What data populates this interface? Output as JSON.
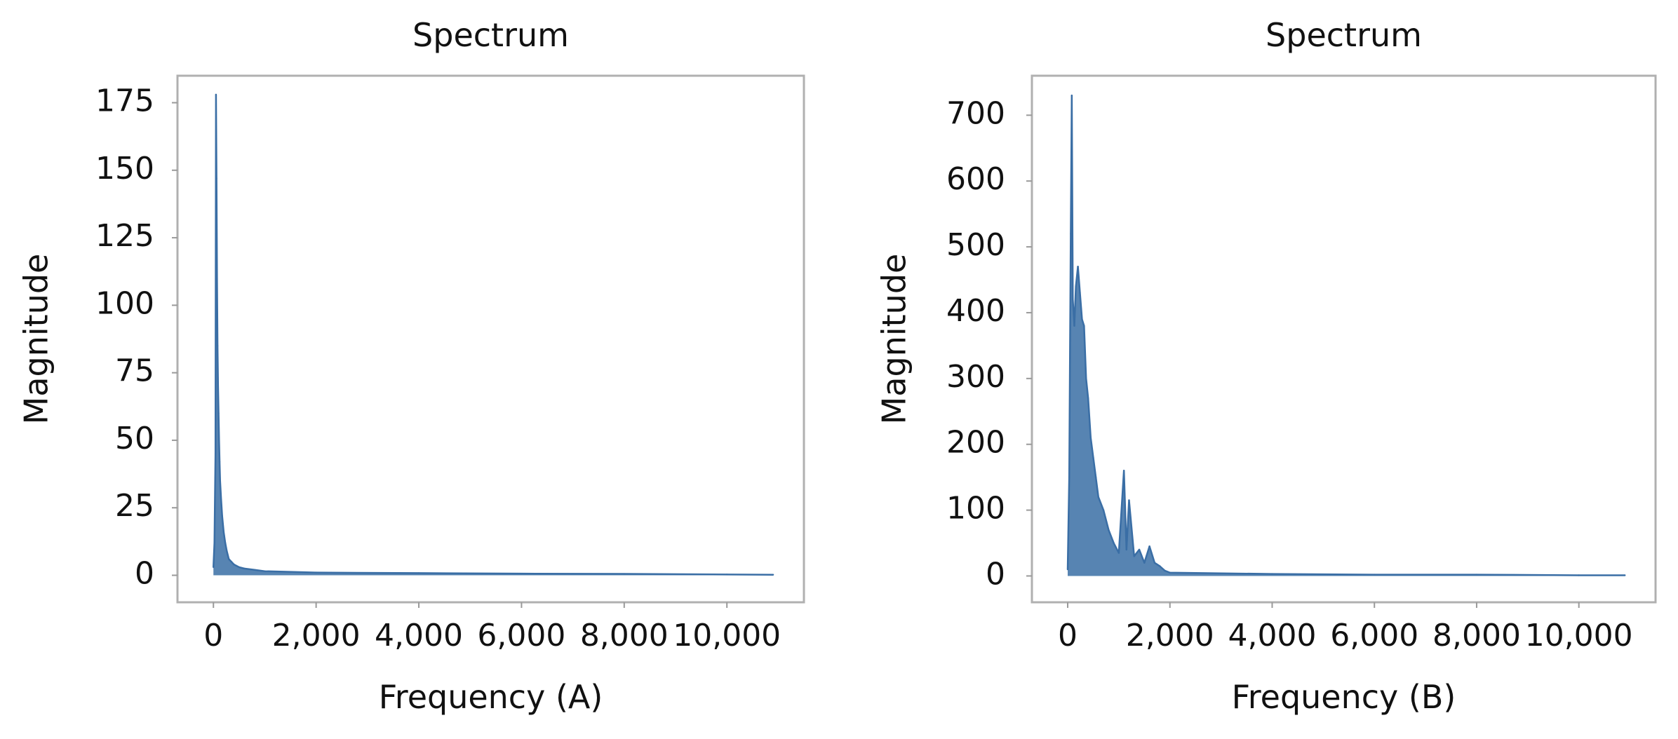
{
  "chart_data": [
    {
      "type": "line",
      "title": "Spectrum",
      "xlabel": "Frequency (A)",
      "ylabel": "Magnitude",
      "xlim": [
        -700,
        11500
      ],
      "ylim": [
        -10,
        185
      ],
      "xticks": [
        0,
        2000,
        4000,
        6000,
        8000,
        10000
      ],
      "xtick_labels": [
        "0",
        "2,000",
        "4,000",
        "6,000",
        "8,000",
        "10,000"
      ],
      "yticks": [
        0,
        25,
        50,
        75,
        100,
        125,
        150,
        175
      ],
      "ytick_labels": [
        "0",
        "25",
        "50",
        "75",
        "100",
        "125",
        "150",
        "175"
      ],
      "grid": false,
      "line_color": "#3a6ea5",
      "series": [
        {
          "x": [
            0,
            20,
            40,
            50,
            60,
            70,
            80,
            90,
            100,
            110,
            120,
            130,
            150,
            170,
            200,
            230,
            260,
            300,
            350,
            400,
            500,
            600,
            800,
            1000,
            2000,
            4000,
            6000,
            8000,
            10000,
            10900
          ],
          "y": [
            3,
            12,
            45,
            178,
            147,
            110,
            85,
            70,
            60,
            50,
            42,
            35,
            28,
            22,
            16,
            12,
            9,
            6,
            5,
            4,
            3,
            2.5,
            2,
            1.5,
            1,
            0.8,
            0.6,
            0.5,
            0.3,
            0.2
          ]
        }
      ]
    },
    {
      "type": "line",
      "title": "Spectrum",
      "xlabel": "Frequency (B)",
      "ylabel": "Magnitude",
      "xlim": [
        -700,
        11500
      ],
      "ylim": [
        -40,
        760
      ],
      "xticks": [
        0,
        2000,
        4000,
        6000,
        8000,
        10000
      ],
      "xtick_labels": [
        "0",
        "2,000",
        "4,000",
        "6,000",
        "8,000",
        "10,000"
      ],
      "yticks": [
        0,
        100,
        200,
        300,
        400,
        500,
        600,
        700
      ],
      "ytick_labels": [
        "0",
        "100",
        "200",
        "300",
        "400",
        "500",
        "600",
        "700"
      ],
      "grid": false,
      "line_color": "#3a6ea5",
      "series": [
        {
          "x": [
            0,
            30,
            60,
            80,
            100,
            130,
            160,
            200,
            240,
            280,
            320,
            360,
            400,
            450,
            500,
            550,
            600,
            700,
            800,
            900,
            1000,
            1100,
            1150,
            1200,
            1300,
            1400,
            1500,
            1600,
            1700,
            1800,
            1900,
            2000,
            4000,
            6000,
            8000,
            10000,
            10900
          ],
          "y": [
            10,
            150,
            520,
            730,
            420,
            380,
            440,
            470,
            430,
            390,
            380,
            300,
            270,
            210,
            180,
            150,
            120,
            100,
            70,
            50,
            35,
            160,
            40,
            115,
            30,
            40,
            20,
            45,
            20,
            15,
            8,
            5,
            3,
            2,
            2,
            1,
            1
          ]
        }
      ]
    }
  ]
}
